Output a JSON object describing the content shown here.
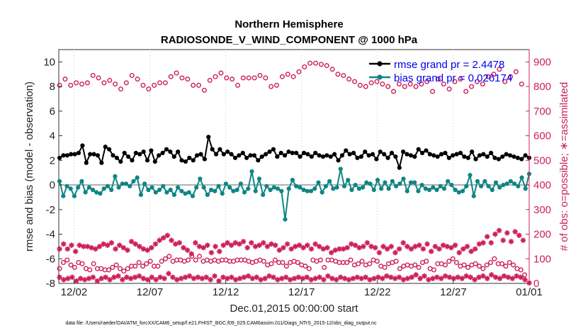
{
  "chart_data": {
    "type": "line",
    "title": "Northern Hemisphere",
    "subtitle": "RADIOSONDE_V_WIND_COMPONENT @ 1000 hPa",
    "xlabel": "Dec.01,2015 00:00:00 start",
    "ylabel": "rmse and bias (model - observation)",
    "ylabel_right": "# of obs: o=possible; ∗=assimilated",
    "footnote": "data file: /Users/raeder/DAI/ATM_forcXX/CAM6_setup/f.e21.FHIST_BGC.f09_025.CAM6assim.011/Diags_NTrS_2015-12/obs_diag_output.nc",
    "xlim": [
      0,
      31
    ],
    "ylim": [
      -8,
      11
    ],
    "ylim_right": [
      0,
      950
    ],
    "x_ticks": [
      1,
      6,
      11,
      16,
      21,
      26,
      31
    ],
    "x_tick_labels": [
      "12/02",
      "12/07",
      "12/12",
      "12/17",
      "12/22",
      "12/27",
      "01/01"
    ],
    "y_ticks": [
      -8,
      -6,
      -4,
      -2,
      0,
      2,
      4,
      6,
      8,
      10
    ],
    "y_tick_labels": [
      "-8",
      "-6",
      "-4",
      "-2",
      "0",
      "2",
      "4",
      "6",
      "8",
      "10"
    ],
    "y_ticks_right": [
      0,
      100,
      200,
      300,
      400,
      500,
      600,
      700,
      800,
      900
    ],
    "y_tick_labels_right": [
      "0",
      "100",
      "200",
      "300",
      "400",
      "500",
      "600",
      "700",
      "800",
      "900"
    ],
    "legend": [
      {
        "name": "rmse grand pr = 2.4478",
        "color": "#000000"
      },
      {
        "name": "bias grand pr = 0.026174",
        "color": "#0f8585"
      }
    ],
    "legend_position": "top-right",
    "colors": {
      "rmse": "#000000",
      "bias": "#0f8585",
      "obs": "#cc1f5e",
      "zero_line": "#b0b0b0"
    },
    "series": [
      {
        "name": "rmse",
        "values": [
          2.2,
          2.4,
          2.4,
          2.5,
          2.5,
          2.6,
          3.2,
          1.8,
          2.5,
          2.5,
          2.4,
          1.8,
          3.1,
          2.9,
          2.4,
          2.2,
          1.9,
          2.6,
          2.3,
          2.0,
          2.6,
          2.5,
          2.7,
          2.0,
          2.8,
          1.9,
          2.4,
          2.6,
          2.9,
          2.7,
          2.3,
          2.7,
          2.0,
          1.9,
          2.2,
          2.0,
          2.4,
          2.5,
          2.1,
          3.9,
          2.9,
          2.5,
          2.9,
          2.5,
          2.7,
          2.5,
          2.2,
          2.4,
          2.6,
          2.2,
          2.4,
          2.4,
          2.0,
          2.3,
          2.5,
          2.7,
          2.9,
          2.3,
          2.6,
          2.4,
          2.7,
          2.6,
          2.6,
          2.3,
          2.6,
          2.5,
          2.3,
          2.6,
          2.4,
          2.3,
          2.4,
          2.3,
          2.5,
          2.0,
          2.4,
          2.8,
          2.5,
          2.6,
          2.2,
          2.3,
          2.7,
          2.4,
          2.5,
          2.1,
          2.7,
          2.5,
          2.2,
          2.6,
          2.3,
          1.4,
          2.7,
          2.5,
          2.4,
          2.3,
          2.9,
          2.6,
          2.8,
          2.5,
          2.4,
          2.3,
          2.5,
          2.6,
          2.2,
          2.4,
          2.5,
          2.6,
          2.3,
          2.2,
          2.7,
          2.1,
          2.4,
          2.5,
          2.3,
          2.6,
          2.2,
          2.1,
          2.3,
          2.5,
          2.4,
          2.3,
          2.2,
          2.1,
          2.4,
          2.2
        ]
      },
      {
        "name": "bias",
        "values": [
          0.3,
          -0.9,
          -0.1,
          -0.3,
          -0.9,
          -0.2,
          0.3,
          -0.6,
          -0.2,
          -0.4,
          -0.6,
          -0.7,
          -0.3,
          -0.1,
          -0.4,
          0.7,
          -0.2,
          0.1,
          0.1,
          -0.1,
          0.3,
          0.6,
          -0.8,
          0.1,
          -0.4,
          -0.2,
          -0.6,
          -0.4,
          -0.1,
          -0.6,
          -0.4,
          -0.8,
          -0.2,
          -0.5,
          -0.7,
          -0.6,
          -0.9,
          -0.2,
          0.5,
          -0.2,
          -0.8,
          -0.4,
          -0.5,
          -0.1,
          -0.7,
          0.1,
          -0.2,
          -0.5,
          -0.4,
          0.1,
          -0.6,
          -0.3,
          1.1,
          -0.5,
          0.5,
          -0.8,
          -0.1,
          -0.4,
          -0.2,
          -0.3,
          -0.5,
          -2.8,
          -0.3,
          0.4,
          -0.1,
          -0.2,
          -0.4,
          -0.5,
          -0.5,
          -0.3,
          0.2,
          -0.6,
          -0.1,
          0.3,
          -0.3,
          -0.2,
          1.3,
          -0.1,
          0.4,
          -0.4,
          0.0,
          -0.3,
          -0.2,
          0.2,
          0.1,
          -0.4,
          0.4,
          -0.3,
          0.2,
          -0.3,
          0.3,
          -0.1,
          0.1,
          0.5,
          -0.5,
          0.2,
          0.2,
          -0.5,
          0.0,
          -0.3,
          -0.4,
          -0.2,
          -0.4,
          -0.1,
          -0.3,
          0.3,
          0.0,
          -0.4,
          -0.6,
          -0.5,
          -0.1,
          0.8,
          -0.9,
          0.3,
          -0.1,
          0.3,
          -0.1,
          -0.4,
          0.2,
          -0.2,
          0.0,
          0.1,
          0.3,
          0.1,
          -0.1,
          0.6,
          -0.3,
          0.9
        ]
      },
      {
        "name": "possible_upper",
        "values": [
          805,
          830,
          805,
          815,
          810,
          815,
          845,
          835,
          815,
          825,
          810,
          790,
          815,
          845,
          830,
          805,
          790,
          805,
          815,
          815,
          840,
          855,
          835,
          830,
          805,
          805,
          785,
          825,
          840,
          855,
          835,
          830,
          805,
          835,
          835,
          835,
          845,
          835,
          800,
          805,
          840,
          850,
          840,
          860,
          880,
          895,
          895,
          890,
          885,
          870,
          850,
          845,
          830,
          820,
          805,
          800,
          815,
          820,
          810,
          800,
          780,
          810,
          800,
          810,
          800,
          810,
          820,
          780,
          830,
          810,
          790,
          820,
          830,
          780,
          800,
          820,
          810,
          840,
          850,
          870,
          820,
          840,
          860,
          810
        ]
      },
      {
        "name": "possible_lower",
        "values": [
          60,
          85,
          95,
          75,
          65,
          85,
          80,
          60,
          55,
          80,
          60,
          60,
          55,
          55,
          65,
          75,
          60,
          50,
          60,
          70,
          70,
          85,
          70,
          80,
          90,
          70,
          70,
          90,
          100,
          110,
          90,
          95,
          95,
          90,
          95,
          110,
          95,
          110,
          90,
          95,
          90,
          95,
          90,
          95,
          95,
          90,
          90,
          95,
          95,
          95,
          90,
          85,
          90,
          95,
          90,
          75,
          80,
          95,
          85,
          85,
          70,
          85,
          90,
          85,
          75,
          70,
          60,
          95,
          90,
          95,
          65,
          95,
          95,
          90,
          85,
          85,
          85,
          95,
          75,
          80,
          90,
          75,
          80,
          95,
          90,
          70,
          65,
          80,
          85,
          90,
          60,
          70,
          75,
          70,
          75,
          65,
          85,
          90,
          60,
          55,
          80,
          80,
          75,
          90,
          100,
          85,
          70,
          75,
          65,
          75,
          80,
          70,
          60,
          75,
          85,
          100,
          80,
          80,
          70,
          85,
          75,
          60,
          55,
          35
        ]
      },
      {
        "name": "assimilated_upper",
        "values": [
          140,
          160,
          140,
          155,
          130,
          155,
          150,
          150,
          145,
          140,
          150,
          160,
          155,
          165,
          140,
          155,
          145,
          135,
          170,
          160,
          150,
          140,
          135,
          145,
          160,
          175,
          185,
          195,
          175,
          160,
          165,
          145,
          135,
          120,
          165,
          150,
          145,
          155,
          125,
          150,
          130,
          155,
          165,
          155,
          165,
          160,
          170,
          145,
          165,
          150,
          155,
          165,
          150,
          160,
          155,
          135,
          145,
          160,
          140,
          150,
          155,
          145,
          155,
          140,
          160,
          150,
          140,
          145,
          125,
          135,
          140,
          140,
          145,
          160,
          155,
          145,
          150,
          165,
          150,
          145,
          125,
          150,
          140,
          150,
          125,
          140,
          165,
          150,
          140,
          150,
          155,
          140,
          160,
          130,
          150,
          140,
          155,
          150,
          145,
          155,
          125,
          140,
          150,
          130,
          140,
          160,
          165,
          190,
          165,
          200,
          215,
          175,
          205,
          170,
          210,
          195,
          175
        ]
      },
      {
        "name": "assimilated_lower",
        "values": [
          25,
          15,
          20,
          25,
          10,
          20,
          15,
          20,
          25,
          10,
          20,
          25,
          15,
          25,
          30,
          15,
          25,
          20,
          25,
          30,
          20,
          15,
          25,
          15,
          25,
          20,
          40,
          25,
          15,
          20,
          25,
          30,
          20,
          25,
          20,
          25,
          15,
          30,
          10,
          25,
          20,
          25,
          15,
          20,
          25,
          30,
          20,
          25,
          15,
          20,
          30,
          25,
          15,
          20,
          25,
          15,
          20,
          25,
          20,
          25,
          15,
          20,
          25,
          15,
          30,
          20,
          15,
          25,
          20,
          15,
          20,
          25,
          20,
          25,
          15,
          20,
          25,
          20,
          30,
          25,
          20,
          25,
          15,
          20,
          25,
          35,
          20,
          30,
          15,
          20,
          25,
          20,
          30,
          25,
          20,
          25,
          20,
          30,
          25,
          15,
          25,
          30,
          20,
          35,
          25,
          20,
          30,
          25,
          20,
          30,
          25,
          15,
          2
        ]
      }
    ]
  }
}
